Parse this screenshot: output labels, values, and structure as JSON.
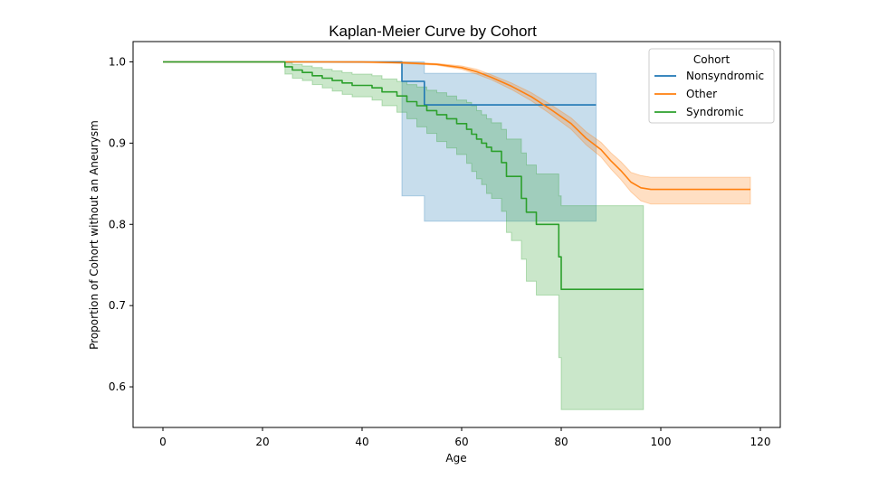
{
  "chart_data": {
    "type": "line",
    "title": "Kaplan-Meier Curve by Cohort",
    "xlabel": "Age",
    "ylabel": "Proportion of Cohort without an Aneurysm",
    "xlim": [
      -6,
      124
    ],
    "ylim": [
      0.55,
      1.025
    ],
    "xticks": [
      0,
      20,
      40,
      60,
      80,
      100,
      120
    ],
    "yticks": [
      0.6,
      0.7,
      0.8,
      0.9,
      1.0
    ],
    "ytick_labels": [
      "0.6",
      "0.7",
      "0.8",
      "0.9",
      "1.0"
    ],
    "grid": false,
    "legend": {
      "title": "Cohort",
      "position": "top-right"
    },
    "series": [
      {
        "name": "Nonsyndromic",
        "color": "#1f77b4",
        "step": true,
        "x": [
          0,
          48,
          52.5,
          87
        ],
        "y": [
          1.0,
          0.976,
          0.947,
          0.947
        ],
        "ci_lower": [
          1.0,
          0.835,
          0.804,
          0.804
        ],
        "ci_upper": [
          1.0,
          1.0,
          0.986,
          0.986
        ]
      },
      {
        "name": "Other",
        "color": "#ff7f0e",
        "step": false,
        "x": [
          0,
          25,
          40,
          48,
          55,
          60,
          63,
          66,
          70,
          74,
          78,
          82,
          85,
          88,
          90,
          92,
          94,
          96,
          98,
          118
        ],
        "y": [
          1.0,
          1.0,
          1.0,
          0.999,
          0.997,
          0.993,
          0.988,
          0.981,
          0.97,
          0.957,
          0.941,
          0.924,
          0.906,
          0.892,
          0.878,
          0.866,
          0.852,
          0.845,
          0.843,
          0.843
        ],
        "ci_lower": [
          1.0,
          1.0,
          0.999,
          0.998,
          0.996,
          0.991,
          0.985,
          0.978,
          0.966,
          0.952,
          0.935,
          0.917,
          0.898,
          0.883,
          0.868,
          0.855,
          0.84,
          0.829,
          0.825,
          0.825
        ],
        "ci_upper": [
          1.0,
          1.0,
          1.0,
          1.0,
          0.998,
          0.995,
          0.991,
          0.984,
          0.974,
          0.962,
          0.947,
          0.931,
          0.914,
          0.901,
          0.888,
          0.877,
          0.864,
          0.86,
          0.858,
          0.858
        ]
      },
      {
        "name": "Syndromic",
        "color": "#2ca02c",
        "step": true,
        "x": [
          0,
          24.5,
          26,
          28,
          30,
          32,
          34,
          36,
          38,
          42,
          44,
          47,
          49,
          51,
          53,
          55,
          57,
          59,
          61,
          62,
          63,
          64,
          65,
          66,
          68,
          69,
          70,
          72,
          73,
          75,
          79.5,
          80,
          96.5
        ],
        "y": [
          1.0,
          0.994,
          0.99,
          0.987,
          0.983,
          0.98,
          0.977,
          0.974,
          0.971,
          0.968,
          0.963,
          0.958,
          0.951,
          0.946,
          0.94,
          0.935,
          0.93,
          0.924,
          0.917,
          0.911,
          0.905,
          0.9,
          0.895,
          0.89,
          0.876,
          0.859,
          0.859,
          0.832,
          0.815,
          0.8,
          0.76,
          0.72,
          0.72
        ],
        "ci_lower": [
          1.0,
          0.985,
          0.98,
          0.977,
          0.972,
          0.968,
          0.964,
          0.96,
          0.957,
          0.953,
          0.946,
          0.938,
          0.93,
          0.92,
          0.912,
          0.902,
          0.894,
          0.886,
          0.875,
          0.865,
          0.856,
          0.849,
          0.838,
          0.832,
          0.816,
          0.79,
          0.78,
          0.757,
          0.73,
          0.713,
          0.636,
          0.572,
          0.572
        ],
        "ci_upper": [
          1.0,
          0.999,
          0.997,
          0.995,
          0.993,
          0.991,
          0.989,
          0.987,
          0.985,
          0.983,
          0.979,
          0.976,
          0.972,
          0.969,
          0.965,
          0.962,
          0.958,
          0.953,
          0.95,
          0.946,
          0.94,
          0.935,
          0.93,
          0.925,
          0.917,
          0.905,
          0.905,
          0.888,
          0.873,
          0.862,
          0.835,
          0.823,
          0.823
        ]
      }
    ]
  }
}
